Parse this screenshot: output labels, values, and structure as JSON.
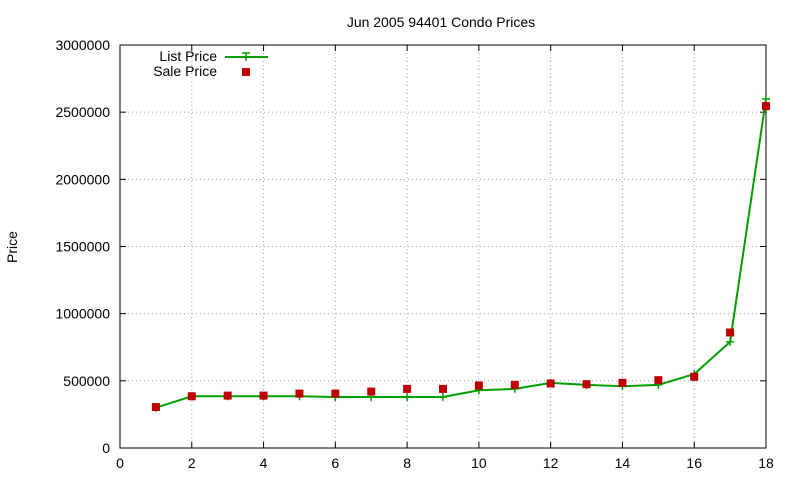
{
  "chart_data": {
    "type": "line",
    "title": "Jun 2005 94401 Condo Prices",
    "xlabel": "",
    "ylabel": "Price",
    "xlim": [
      0,
      18
    ],
    "ylim": [
      0,
      3000000
    ],
    "xticks": [
      "0",
      "2",
      "4",
      "6",
      "8",
      "10",
      "12",
      "14",
      "16",
      "18"
    ],
    "yticks": [
      "0",
      "500000",
      "1000000",
      "1500000",
      "2000000",
      "2500000",
      "3000000"
    ],
    "grid": true,
    "legend_position": "top-left",
    "x": [
      1,
      2,
      3,
      4,
      5,
      6,
      7,
      8,
      9,
      10,
      11,
      12,
      13,
      14,
      15,
      16,
      17,
      18
    ],
    "series": [
      {
        "name": "List Price",
        "style": "line-with-plus-markers",
        "color": "#00a000",
        "values": [
          300000,
          385000,
          385000,
          385000,
          385000,
          380000,
          380000,
          380000,
          380000,
          430000,
          440000,
          485000,
          470000,
          460000,
          470000,
          550000,
          790000,
          2600000
        ]
      },
      {
        "name": "Sale Price",
        "style": "square-markers",
        "color": "#c00000",
        "values": [
          305000,
          385000,
          390000,
          390000,
          405000,
          405000,
          420000,
          440000,
          440000,
          465000,
          470000,
          480000,
          475000,
          485000,
          505000,
          530000,
          860000,
          2545000
        ]
      }
    ]
  }
}
